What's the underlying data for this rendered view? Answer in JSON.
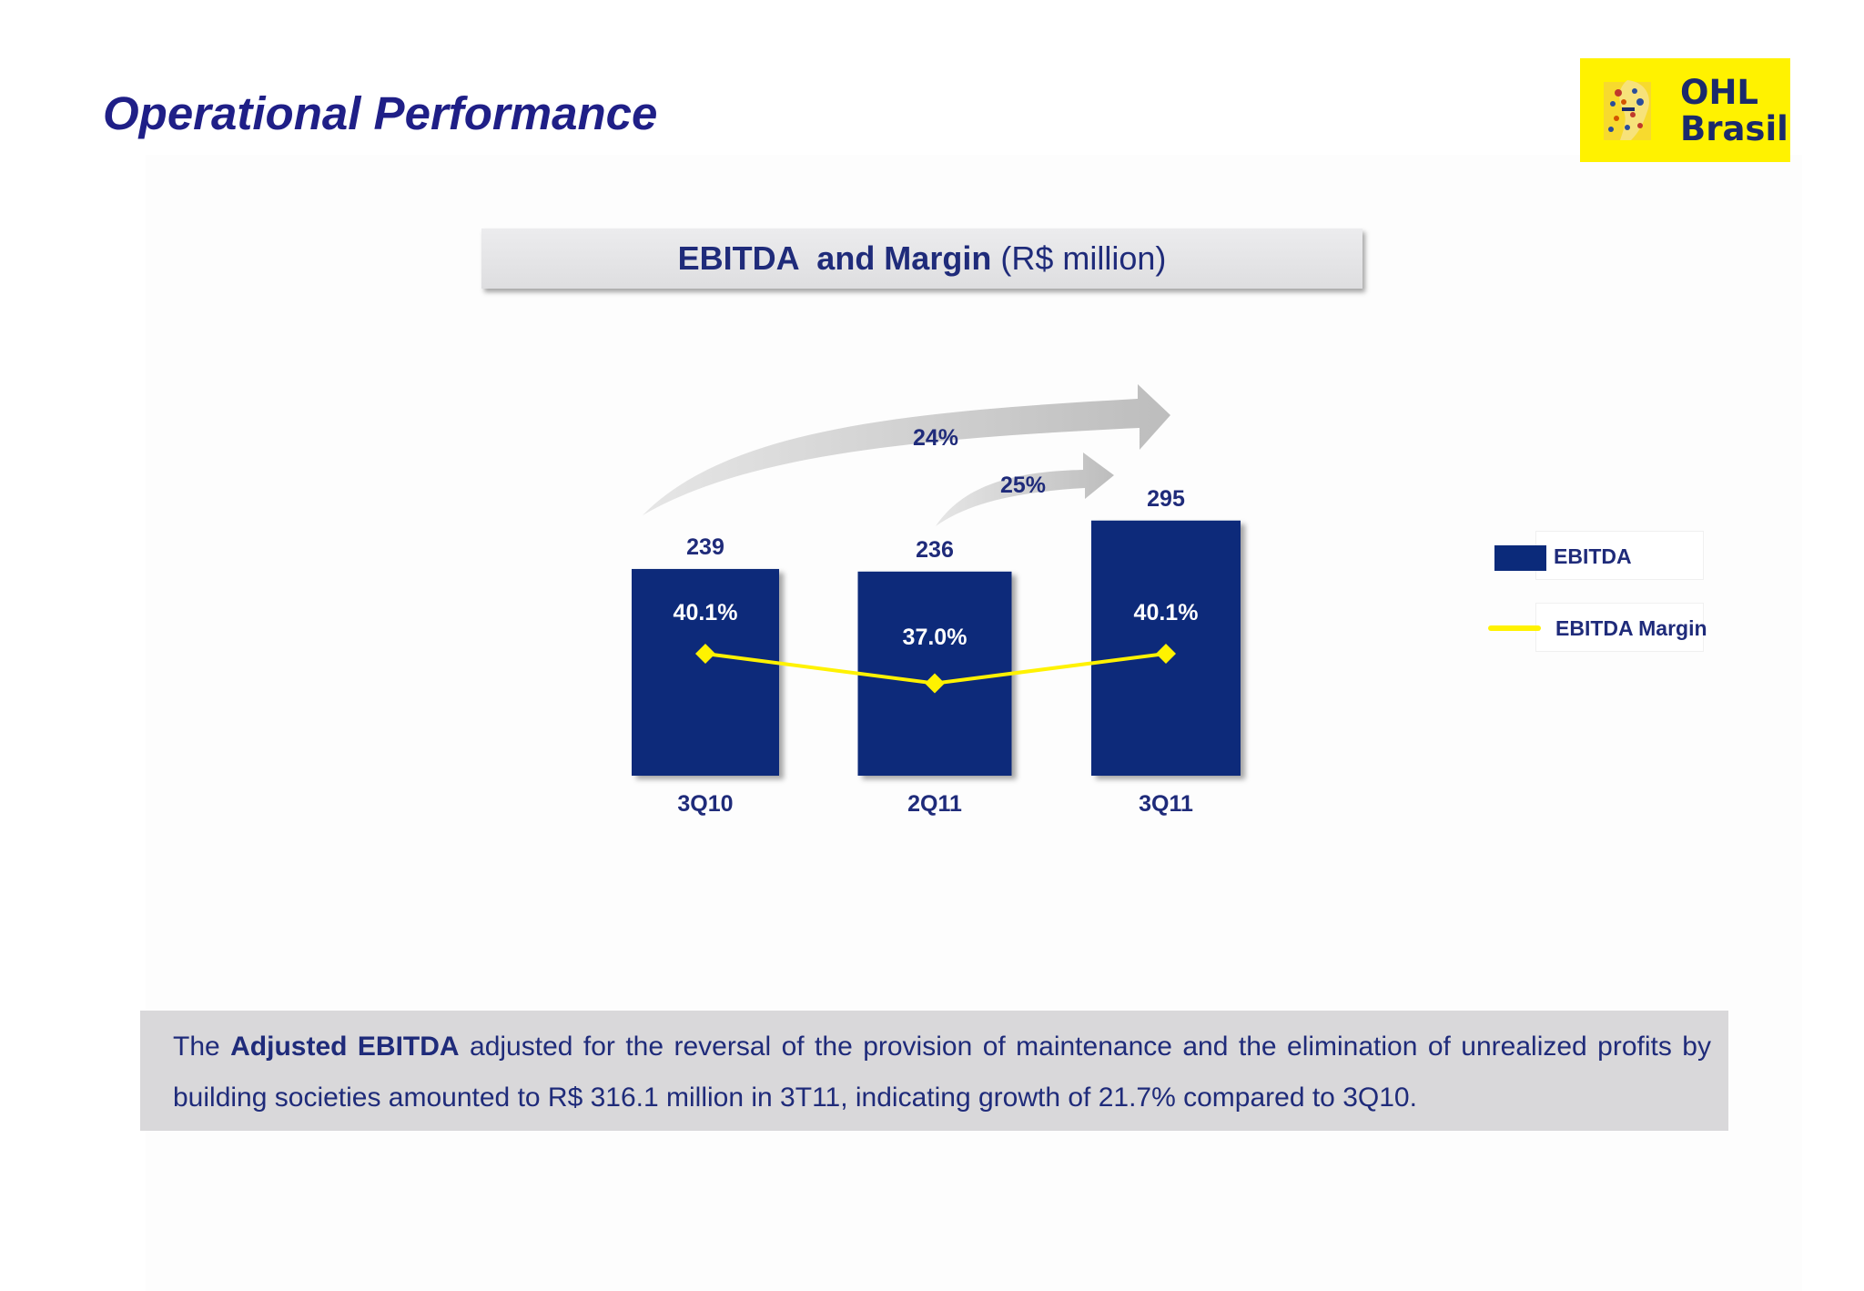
{
  "page": {
    "title": "Operational Performance"
  },
  "logo": {
    "line1": "OHL",
    "line2": "Brasil",
    "colors": {
      "background": "#fff200",
      "text": "#1b2a6b"
    }
  },
  "chart_header": {
    "bold": "EBITDA  and Margin",
    "unit": "(R$ million)"
  },
  "chart_data": {
    "type": "bar",
    "title": "EBITDA  and Margin (R$ million)",
    "categories": [
      "3Q10",
      "2Q11",
      "3Q11"
    ],
    "series": [
      {
        "name": "EBITDA",
        "type": "bar",
        "values": [
          239,
          236,
          295
        ],
        "labels": [
          "239",
          "236",
          "295"
        ],
        "color": "#0b2a7a"
      },
      {
        "name": "EBITDA Margin",
        "type": "line",
        "values": [
          40.1,
          37.0,
          40.1
        ],
        "labels": [
          "40.1%",
          "37.0%",
          "40.1%"
        ],
        "color": "#fff200"
      }
    ],
    "growth_annotations": [
      {
        "label": "24%",
        "from": "3Q10",
        "to": "3Q11"
      },
      {
        "label": "25%",
        "from": "2Q11",
        "to": "3Q11"
      }
    ],
    "legend": {
      "position": "right",
      "items": [
        {
          "label": "EBITDA",
          "marker": "bar"
        },
        {
          "label": "EBITDA Margin",
          "marker": "line"
        }
      ]
    },
    "grid": false
  },
  "commentary": {
    "text_before": "The ",
    "bold": "Adjusted EBITDA",
    "text_after": " adjusted for the reversal of the provision of maintenance and the elimination of unrealized profits by building societies amounted to R$ 316.1 million in 3T11, indicating growth of 21.7% compared to 3Q10."
  }
}
